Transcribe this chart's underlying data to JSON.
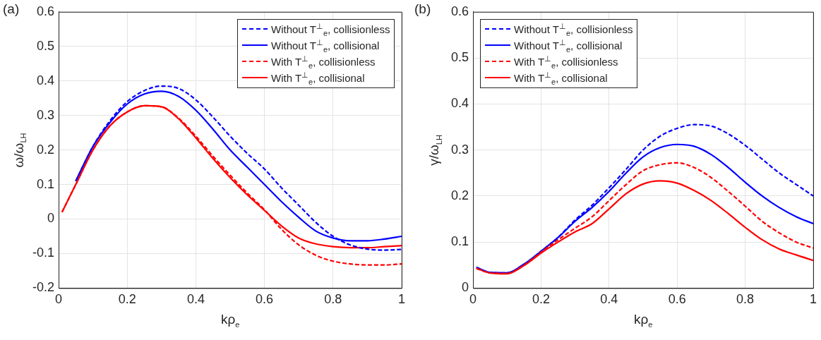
{
  "chart_data": [
    {
      "type": "line",
      "title": "(a)",
      "xlabel": "kρ$_{e}$",
      "ylabel": "ω/ω$_{LH}$",
      "xlim": [
        0,
        1
      ],
      "xticks": [
        0,
        0.2,
        0.4,
        0.6,
        0.8,
        1
      ],
      "ylim": [
        -0.2,
        0.6
      ],
      "yticks": [
        -0.2,
        -0.1,
        0,
        0.1,
        0.2,
        0.3,
        0.4,
        0.5,
        0.6
      ],
      "grid": true,
      "legend": "top right",
      "marker": "none",
      "x": [
        0.01,
        0.05,
        0.1,
        0.15,
        0.2,
        0.25,
        0.3,
        0.35,
        0.4,
        0.45,
        0.5,
        0.55,
        0.6,
        0.65,
        0.7,
        0.75,
        0.8,
        0.85,
        0.9,
        0.95,
        1.0
      ],
      "series": [
        {
          "name": "Without T$^{⊥}$$_{e}$, collisionless",
          "color": "#0000ff",
          "line_style": "dashed",
          "values": [
            null,
            0.11,
            0.21,
            0.285,
            0.34,
            0.372,
            0.385,
            0.378,
            0.345,
            0.295,
            0.24,
            0.19,
            0.145,
            0.09,
            0.04,
            -0.01,
            -0.05,
            -0.075,
            -0.087,
            -0.09,
            -0.088
          ]
        },
        {
          "name": "Without T$^{⊥}$$_{e}$, collisional",
          "color": "#0000ff",
          "line_style": "solid",
          "values": [
            null,
            0.11,
            0.21,
            0.28,
            0.333,
            0.362,
            0.37,
            0.355,
            0.315,
            0.26,
            0.2,
            0.15,
            0.1,
            0.05,
            0.005,
            -0.035,
            -0.055,
            -0.063,
            -0.063,
            -0.058,
            -0.05
          ]
        },
        {
          "name": "With T$^{⊥}$$_{e}$, collisionless",
          "color": "#ff0000",
          "line_style": "dashed",
          "values": [
            0.02,
            0.1,
            0.2,
            0.27,
            0.31,
            0.328,
            0.325,
            0.292,
            0.24,
            0.182,
            0.127,
            0.075,
            0.027,
            -0.03,
            -0.075,
            -0.105,
            -0.122,
            -0.13,
            -0.133,
            -0.133,
            -0.13
          ]
        },
        {
          "name": "With T$^{⊥}$$_{e}$, collisional",
          "color": "#ff0000",
          "line_style": "solid",
          "values": [
            0.02,
            0.1,
            0.2,
            0.27,
            0.31,
            0.328,
            0.325,
            0.29,
            0.235,
            0.175,
            0.12,
            0.07,
            0.025,
            -0.02,
            -0.055,
            -0.072,
            -0.08,
            -0.083,
            -0.083,
            -0.08,
            -0.077
          ]
        }
      ]
    },
    {
      "type": "line",
      "title": "(b)",
      "xlabel": "kρ$_{e}$",
      "ylabel": "γ/ω$_{LH}$",
      "xlim": [
        0,
        1
      ],
      "xticks": [
        0,
        0.2,
        0.4,
        0.6,
        0.8,
        1
      ],
      "ylim": [
        0,
        0.6
      ],
      "yticks": [
        0,
        0.1,
        0.2,
        0.3,
        0.4,
        0.5,
        0.6
      ],
      "grid": true,
      "legend": "top left",
      "marker": "none",
      "x": [
        0.01,
        0.05,
        0.1,
        0.15,
        0.2,
        0.25,
        0.3,
        0.35,
        0.4,
        0.45,
        0.5,
        0.55,
        0.6,
        0.65,
        0.7,
        0.75,
        0.8,
        0.85,
        0.9,
        0.95,
        1.0
      ],
      "series": [
        {
          "name": "Without T$^{⊥}$$_{e}$, collisionless",
          "color": "#0000ff",
          "line_style": "dashed",
          "values": [
            0.045,
            0.034,
            0.033,
            0.052,
            0.08,
            0.11,
            0.148,
            0.18,
            0.218,
            0.258,
            0.3,
            0.33,
            0.347,
            0.355,
            0.352,
            0.335,
            0.31,
            0.28,
            0.25,
            0.225,
            0.2
          ]
        },
        {
          "name": "Without T$^{⊥}$$_{e}$, collisional",
          "color": "#0000ff",
          "line_style": "solid",
          "values": [
            0.045,
            0.034,
            0.033,
            0.052,
            0.08,
            0.11,
            0.145,
            0.175,
            0.21,
            0.25,
            0.285,
            0.305,
            0.312,
            0.308,
            0.29,
            0.262,
            0.23,
            0.2,
            0.175,
            0.155,
            0.14
          ]
        },
        {
          "name": "With T$^{⊥}$$_{e}$, collisionless",
          "color": "#ff0000",
          "line_style": "dashed",
          "values": [
            0.043,
            0.033,
            0.032,
            0.05,
            0.078,
            0.105,
            0.13,
            0.155,
            0.19,
            0.225,
            0.255,
            0.268,
            0.272,
            0.262,
            0.24,
            0.21,
            0.178,
            0.145,
            0.12,
            0.1,
            0.087
          ]
        },
        {
          "name": "With T$^{⊥}$$_{e}$, collisional",
          "color": "#ff0000",
          "line_style": "solid",
          "values": [
            0.043,
            0.033,
            0.031,
            0.049,
            0.076,
            0.1,
            0.122,
            0.14,
            0.172,
            0.205,
            0.226,
            0.233,
            0.228,
            0.212,
            0.19,
            0.162,
            0.132,
            0.105,
            0.085,
            0.072,
            0.06
          ]
        }
      ]
    }
  ]
}
